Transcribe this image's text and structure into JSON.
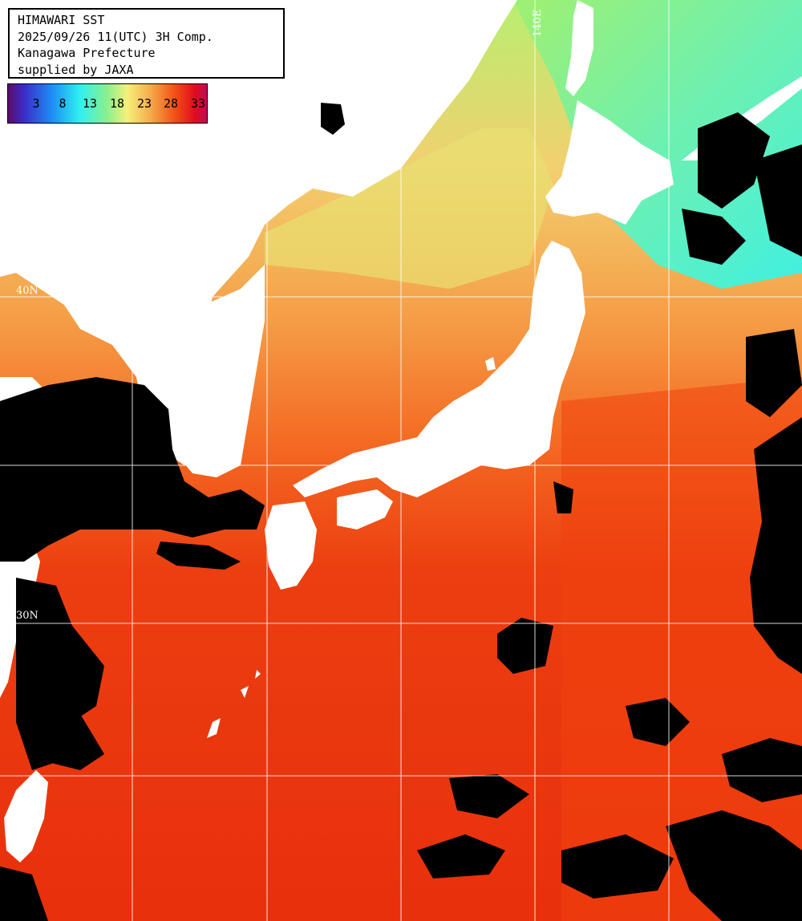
{
  "header": {
    "line1": "HIMAWARI SST",
    "line2": "2025/09/26 11(UTC) 3H Comp.",
    "line3": "Kanagawa Prefecture",
    "line4": "supplied by JAXA"
  },
  "legend": {
    "labels": [
      "3",
      "8",
      "13",
      "18",
      "23",
      "28",
      "33"
    ],
    "colors": [
      "#5b0c6b",
      "#3b2cc8",
      "#1d8cf5",
      "#2ef0f0",
      "#8cf08c",
      "#f5f07a",
      "#f5a84a",
      "#f25014",
      "#e00c1e",
      "#c00a5a"
    ]
  },
  "grid": {
    "longitude_labels": [
      "140E"
    ],
    "latitude_labels": [
      "40N",
      "30N"
    ]
  },
  "colors": {
    "land": "#ffffff",
    "cloud": "#000000",
    "warm_sea": "#e8380c",
    "cool_sea": "#f5a84a",
    "cold_sea": "#9ef07a"
  }
}
